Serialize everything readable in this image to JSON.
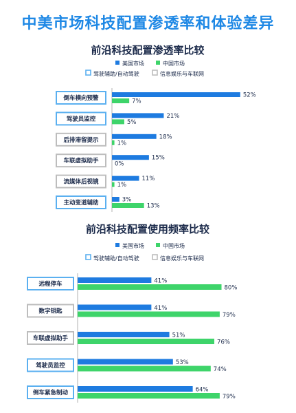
{
  "title": "中美市场科技配置渗透率和体验差异",
  "colors": {
    "title": "#1e88e5",
    "us": "#1e7be0",
    "cn": "#3ed46a",
    "adas_box": "#5bb0f0",
    "info_box": "#bdbdbd",
    "axis": "#b0b0b0"
  },
  "chart_data": [
    {
      "type": "bar",
      "title": "前沿科技配置渗透率比较",
      "unit": "%",
      "legend": {
        "series": [
          "美国市场",
          "中国市场"
        ],
        "categories": [
          "驾驶辅助/自动驾驶",
          "信息娱乐与车联网"
        ]
      },
      "categories": [
        "倒车横向预警",
        "驾驶员监控",
        "后排滞留提示",
        "车联虚拟助手",
        "流媒体后视镜",
        "主动变道辅助"
      ],
      "category_group": [
        "adas",
        "adas",
        "info",
        "info",
        "info",
        "adas"
      ],
      "series": [
        {
          "name": "美国市场",
          "values": [
            52,
            21,
            18,
            15,
            11,
            3
          ]
        },
        {
          "name": "中国市场",
          "values": [
            7,
            5,
            1,
            0,
            1,
            13
          ]
        }
      ],
      "xlim": [
        0,
        54
      ]
    },
    {
      "type": "bar",
      "title": "前沿科技配置使用频率比较",
      "unit": "%",
      "legend": {
        "series": [
          "美国市场",
          "中国市场"
        ],
        "categories": [
          "驾驶辅助/自动驾驶",
          "信息娱乐与车联网"
        ]
      },
      "categories": [
        "远程停车",
        "数字钥匙",
        "车联虚拟助手",
        "驾驶员监控",
        "倒车紧急制动"
      ],
      "category_group": [
        "adas",
        "info",
        "info",
        "adas",
        "adas"
      ],
      "series": [
        {
          "name": "美国市场",
          "values": [
            41,
            41,
            51,
            53,
            64
          ]
        },
        {
          "name": "中国市场",
          "values": [
            80,
            79,
            76,
            74,
            79
          ]
        }
      ],
      "xlim": [
        0,
        84
      ]
    }
  ]
}
